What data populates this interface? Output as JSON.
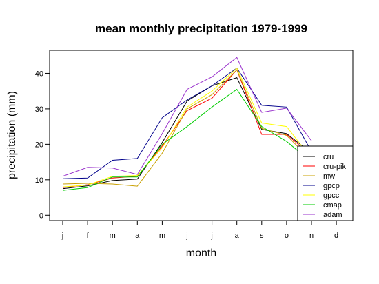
{
  "chart_data": {
    "type": "line",
    "title": "mean monthly precipitation 1979-1999",
    "xlabel": "month",
    "ylabel": "precipitation (mm)",
    "categories": [
      "j",
      "f",
      "m",
      "a",
      "m",
      "j",
      "j",
      "a",
      "s",
      "o",
      "n",
      "d"
    ],
    "yticks": [
      0,
      10,
      20,
      30,
      40
    ],
    "ylim": [
      -1.5,
      46.5
    ],
    "legend_position": "bottom-right",
    "grid": false,
    "series": [
      {
        "name": "cru",
        "color": "#000000",
        "values": [
          7.5,
          8.3,
          9.8,
          10.2,
          20.5,
          32.2,
          36.5,
          38.8,
          24.2,
          23.0,
          17.5,
          null
        ]
      },
      {
        "name": "cru-pik",
        "color": "#ff0000",
        "values": [
          7.8,
          8.6,
          10.5,
          11.0,
          19.5,
          29.5,
          33.0,
          41.0,
          22.8,
          22.8,
          16.8,
          null
        ]
      },
      {
        "name": "mw",
        "color": "#c8a000",
        "values": [
          8.8,
          9.0,
          8.8,
          8.2,
          17.5,
          30.0,
          34.0,
          41.0,
          24.5,
          22.5,
          15.5,
          null
        ]
      },
      {
        "name": "gpcp",
        "color": "#00008b",
        "values": [
          10.3,
          10.5,
          15.5,
          16.0,
          27.5,
          32.5,
          36.5,
          41.5,
          31.0,
          30.5,
          18.0,
          null
        ]
      },
      {
        "name": "gpcc",
        "color": "#ffff00",
        "values": [
          8.0,
          8.5,
          11.0,
          11.2,
          19.0,
          30.5,
          35.0,
          41.5,
          26.0,
          25.0,
          16.0,
          null
        ]
      },
      {
        "name": "cmap",
        "color": "#00cc00",
        "values": [
          7.0,
          7.8,
          10.8,
          10.8,
          20.0,
          25.0,
          30.5,
          35.5,
          25.0,
          20.8,
          15.0,
          null
        ]
      },
      {
        "name": "adam",
        "color": "#9932cc",
        "values": [
          11.0,
          13.5,
          13.3,
          11.5,
          23.0,
          35.5,
          39.0,
          44.5,
          29.0,
          30.2,
          21.0,
          null
        ]
      }
    ]
  }
}
